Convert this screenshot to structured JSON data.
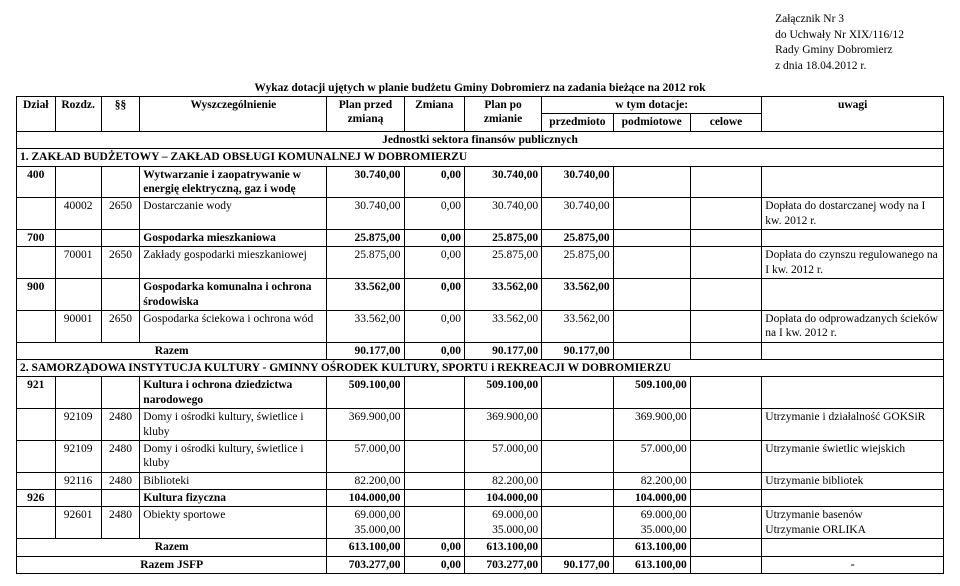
{
  "attachment": {
    "line1": "Załącznik Nr 3",
    "line2": "do Uchwały Nr XIX/116/12",
    "line3": "Rady Gminy Dobromierz",
    "line4": "z dnia 18.04.2012 r."
  },
  "title": "Wykaz dotacji ujętych w planie budżetu Gminy Dobromierz na zadania bieżące na 2012 rok",
  "columns": {
    "dzial": "Dział",
    "rozdz": "Rozdz.",
    "para": "§§",
    "wysz": "Wyszczególnienie",
    "plan_przed": "Plan przed zmianą",
    "zmiana": "Zmiana",
    "plan_po": "Plan po zmianie",
    "w_tym": "w tym dotacje:",
    "przedmioto": "przedmioto",
    "podmiotowe": "podmiotowe",
    "celowe": "celowe",
    "uwagi": "uwagi"
  },
  "section_bar": "Jednostki sektora finansów publicznych",
  "section1": "1. ZAKŁAD BUDŻETOWY – ZAKŁAD OBSŁUGI KOMUNALNEJ W DOBROMIERZU",
  "rows1": [
    {
      "dzial": "400",
      "rozdz": "",
      "para": "",
      "name": "Wytwarzanie i zaopatrywanie w energię elektryczną, gaz i wodę",
      "pp": "30.740,00",
      "zm": "0,00",
      "ppo": "30.740,00",
      "d1": "30.740,00",
      "d2": "",
      "d3": "",
      "uw": "",
      "bold": true
    },
    {
      "dzial": "",
      "rozdz": "40002",
      "para": "2650",
      "name": "Dostarczanie wody",
      "pp": "30.740,00",
      "zm": "0,00",
      "ppo": "30.740,00",
      "d1": "30.740,00",
      "d2": "",
      "d3": "",
      "uw": "Dopłata do dostarczanej wody na I kw. 2012 r."
    },
    {
      "dzial": "700",
      "rozdz": "",
      "para": "",
      "name": "Gospodarka mieszkaniowa",
      "pp": "25.875,00",
      "zm": "0,00",
      "ppo": "25.875,00",
      "d1": "25.875,00",
      "d2": "",
      "d3": "",
      "uw": "",
      "bold": true
    },
    {
      "dzial": "",
      "rozdz": "70001",
      "para": "2650",
      "name": "Zakłady gospodarki mieszkaniowej",
      "pp": "25.875,00",
      "zm": "0,00",
      "ppo": "25.875,00",
      "d1": "25.875,00",
      "d2": "",
      "d3": "",
      "uw": "Dopłata do czynszu regulowanego na I kw. 2012 r."
    },
    {
      "dzial": "900",
      "rozdz": "",
      "para": "",
      "name": "Gospodarka komunalna i ochrona środowiska",
      "pp": "33.562,00",
      "zm": "0,00",
      "ppo": "33.562,00",
      "d1": "33.562,00",
      "d2": "",
      "d3": "",
      "uw": "",
      "bold": true
    },
    {
      "dzial": "",
      "rozdz": "90001",
      "para": "2650",
      "name": "Gospodarka ściekowa i ochrona wód",
      "pp": "33.562,00",
      "zm": "0,00",
      "ppo": "33.562,00",
      "d1": "33.562,00",
      "d2": "",
      "d3": "",
      "uw": "Dopłata do odprowadzanych ścieków na I kw. 2012 r."
    }
  ],
  "razem1": {
    "label": "Razem",
    "pp": "90.177,00",
    "zm": "0,00",
    "ppo": "90.177,00",
    "d1": "90.177,00",
    "d2": "",
    "d3": "",
    "uw": ""
  },
  "section2": "2. SAMORZĄDOWA INSTYTUCJA KULTURY - GMINNY OŚRODEK KULTURY, SPORTU i REKREACJI W DOBROMIERZU",
  "rows2": [
    {
      "dzial": "921",
      "rozdz": "",
      "para": "",
      "name": "Kultura i ochrona dziedzictwa narodowego",
      "pp": "509.100,00",
      "zm": "",
      "ppo": "509.100,00",
      "d1": "",
      "d2": "509.100,00",
      "d3": "",
      "uw": "",
      "bold": true
    },
    {
      "dzial": "",
      "rozdz": "92109",
      "para": "2480",
      "name": "Domy i ośrodki kultury, świetlice i kluby",
      "pp": "369.900,00",
      "zm": "",
      "ppo": "369.900,00",
      "d1": "",
      "d2": "369.900,00",
      "d3": "",
      "uw": "Utrzymanie i działalność GOKSiR"
    },
    {
      "dzial": "",
      "rozdz": "92109",
      "para": "2480",
      "name": "Domy i ośrodki kultury, świetlice i kluby",
      "pp": "57.000,00",
      "zm": "",
      "ppo": "57.000,00",
      "d1": "",
      "d2": "57.000,00",
      "d3": "",
      "uw": "Utrzymanie świetlic wiejskich"
    },
    {
      "dzial": "",
      "rozdz": "92116",
      "para": "2480",
      "name": "Biblioteki",
      "pp": "82.200,00",
      "zm": "",
      "ppo": "82.200,00",
      "d1": "",
      "d2": "82.200,00",
      "d3": "",
      "uw": "Utrzymanie bibliotek"
    },
    {
      "dzial": "926",
      "rozdz": "",
      "para": "",
      "name": "Kultura fizyczna",
      "pp": "104.000,00",
      "zm": "",
      "ppo": "104.000,00",
      "d1": "",
      "d2": "104.000,00",
      "d3": "",
      "uw": "",
      "bold": true
    },
    {
      "dzial": "",
      "rozdz": "92601",
      "para": "2480",
      "name": "Obiekty sportowe",
      "pp": "69.000,00\n35.000,00",
      "zm": "",
      "ppo": "69.000,00\n35.000,00",
      "d1": "",
      "d2": "69.000,00\n35.000,00",
      "d3": "",
      "uw": "Utrzymanie basenów\nUtrzymanie ORLIKA"
    }
  ],
  "razem2": {
    "label": "Razem",
    "pp": "613.100,00",
    "zm": "0,00",
    "ppo": "613.100,00",
    "d1": "",
    "d2": "613.100,00",
    "d3": "",
    "uw": ""
  },
  "razem_jsfp": {
    "label": "Razem JSFP",
    "pp": "703.277,00",
    "zm": "0,00",
    "ppo": "703.277,00",
    "d1": "90.177,00",
    "d2": "613.100,00",
    "d3": "",
    "uw": "-"
  }
}
